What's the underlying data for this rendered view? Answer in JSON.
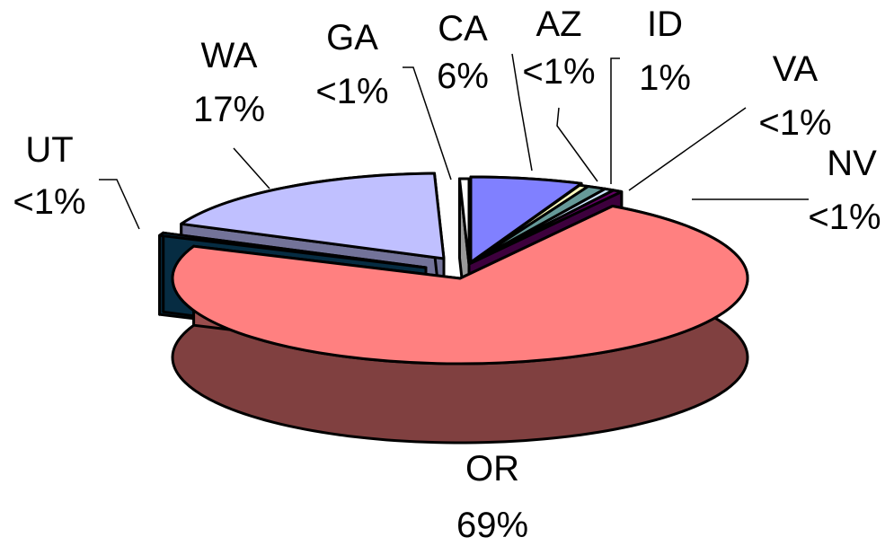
{
  "chart_data": {
    "type": "pie",
    "style": "3d-exploded",
    "categories": [
      "CA",
      "AZ",
      "ID",
      "VA",
      "NV",
      "OR",
      "UT",
      "WA",
      "GA"
    ],
    "values": [
      6,
      0.5,
      1,
      0.5,
      0.5,
      69,
      0.5,
      17,
      0.5
    ],
    "data_labels": [
      "6%",
      "<1%",
      "1%",
      "<1%",
      "<1%",
      "69%",
      "<1%",
      "17%",
      "<1%"
    ],
    "colors": [
      "#8080ff",
      "#ffffc0",
      "#669999",
      "#cce6ff",
      "#660066",
      "#ff8080",
      "#0a4a6e",
      "#c0c0ff",
      "#ffffff"
    ],
    "legend": "none",
    "title": ""
  }
}
